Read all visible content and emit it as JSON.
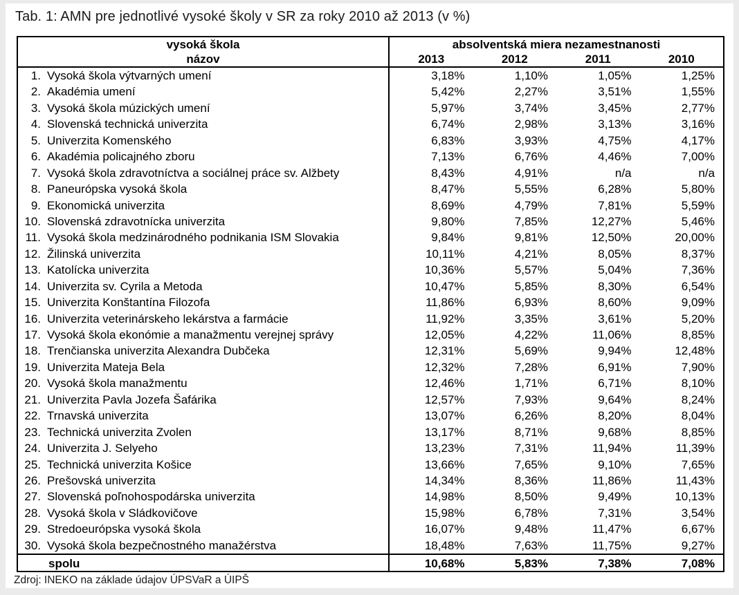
{
  "title": "Tab. 1: AMN pre jednotlivé vysoké školy v SR za roky 2010 až 2013 (v %)",
  "source": "Zdroj: INEKO na základe údajov ÚPSVaR a ÚIPŠ",
  "table": {
    "col1_header_line1": "vysoká škola",
    "col1_header_line2": "názov",
    "col2_header": "absolventská miera nezamestnanosti",
    "years": [
      "2013",
      "2012",
      "2011",
      "2010"
    ],
    "rows": [
      {
        "num": "1.",
        "name": "Vysoká škola výtvarných umení",
        "values": [
          "3,18%",
          "1,10%",
          "1,05%",
          "1,25%"
        ]
      },
      {
        "num": "2.",
        "name": "Akadémia umení",
        "values": [
          "5,42%",
          "2,27%",
          "3,51%",
          "1,55%"
        ]
      },
      {
        "num": "3.",
        "name": "Vysoká škola múzických umení",
        "values": [
          "5,97%",
          "3,74%",
          "3,45%",
          "2,77%"
        ]
      },
      {
        "num": "4.",
        "name": "Slovenská technická univerzita",
        "values": [
          "6,74%",
          "2,98%",
          "3,13%",
          "3,16%"
        ]
      },
      {
        "num": "5.",
        "name": "Univerzita Komenského",
        "values": [
          "6,83%",
          "3,93%",
          "4,75%",
          "4,17%"
        ]
      },
      {
        "num": "6.",
        "name": "Akadémia policajného zboru",
        "values": [
          "7,13%",
          "6,76%",
          "4,46%",
          "7,00%"
        ]
      },
      {
        "num": "7.",
        "name": "Vysoká škola zdravotníctva a sociálnej práce sv. Alžbety",
        "values": [
          "8,43%",
          "4,91%",
          "n/a",
          "n/a"
        ]
      },
      {
        "num": "8.",
        "name": "Paneurópska vysoká škola",
        "values": [
          "8,47%",
          "5,55%",
          "6,28%",
          "5,80%"
        ]
      },
      {
        "num": "9.",
        "name": "Ekonomická univerzita",
        "values": [
          "8,69%",
          "4,79%",
          "7,81%",
          "5,59%"
        ]
      },
      {
        "num": "10.",
        "name": "Slovenská zdravotnícka univerzita",
        "values": [
          "9,80%",
          "7,85%",
          "12,27%",
          "5,46%"
        ]
      },
      {
        "num": "11.",
        "name": "Vysoká škola medzinárodného podnikania ISM Slovakia",
        "values": [
          "9,84%",
          "9,81%",
          "12,50%",
          "20,00%"
        ]
      },
      {
        "num": "12.",
        "name": "Žilinská univerzita",
        "values": [
          "10,11%",
          "4,21%",
          "8,05%",
          "8,37%"
        ]
      },
      {
        "num": "13.",
        "name": "Katolícka univerzita",
        "values": [
          "10,36%",
          "5,57%",
          "5,04%",
          "7,36%"
        ]
      },
      {
        "num": "14.",
        "name": "Univerzita sv. Cyrila a Metoda",
        "values": [
          "10,47%",
          "5,85%",
          "8,30%",
          "6,54%"
        ]
      },
      {
        "num": "15.",
        "name": "Univerzita Konštantína Filozofa",
        "values": [
          "11,86%",
          "6,93%",
          "8,60%",
          "9,09%"
        ]
      },
      {
        "num": "16.",
        "name": "Univerzita veterinárskeho lekárstva a farmácie",
        "values": [
          "11,92%",
          "3,35%",
          "3,61%",
          "5,20%"
        ]
      },
      {
        "num": "17.",
        "name": "Vysoká škola ekonómie a manažmentu verejnej správy",
        "values": [
          "12,05%",
          "4,22%",
          "11,06%",
          "8,85%"
        ]
      },
      {
        "num": "18.",
        "name": "Trenčianska univerzita Alexandra Dubčeka",
        "values": [
          "12,31%",
          "5,69%",
          "9,94%",
          "12,48%"
        ]
      },
      {
        "num": "19.",
        "name": "Univerzita Mateja Bela",
        "values": [
          "12,32%",
          "7,28%",
          "6,91%",
          "7,90%"
        ]
      },
      {
        "num": "20.",
        "name": "Vysoká škola manažmentu",
        "values": [
          "12,46%",
          "1,71%",
          "6,71%",
          "8,10%"
        ]
      },
      {
        "num": "21.",
        "name": "Univerzita Pavla Jozefa Šafárika",
        "values": [
          "12,57%",
          "7,93%",
          "9,64%",
          "8,24%"
        ]
      },
      {
        "num": "22.",
        "name": "Trnavská univerzita",
        "values": [
          "13,07%",
          "6,26%",
          "8,20%",
          "8,04%"
        ]
      },
      {
        "num": "23.",
        "name": "Technická univerzita Zvolen",
        "values": [
          "13,17%",
          "8,71%",
          "9,68%",
          "8,85%"
        ]
      },
      {
        "num": "24.",
        "name": "Univerzita J. Selyeho",
        "values": [
          "13,23%",
          "7,31%",
          "11,94%",
          "11,39%"
        ]
      },
      {
        "num": "25.",
        "name": "Technická univerzita Košice",
        "values": [
          "13,66%",
          "7,65%",
          "9,10%",
          "7,65%"
        ]
      },
      {
        "num": "26.",
        "name": "Prešovská univerzita",
        "values": [
          "14,34%",
          "8,36%",
          "11,86%",
          "11,43%"
        ]
      },
      {
        "num": "27.",
        "name": "Slovenská poľnohospodárska univerzita",
        "values": [
          "14,98%",
          "8,50%",
          "9,49%",
          "10,13%"
        ]
      },
      {
        "num": "28.",
        "name": "Vysoká škola v Sládkovičove",
        "values": [
          "15,98%",
          "6,78%",
          "7,31%",
          "3,54%"
        ]
      },
      {
        "num": "29.",
        "name": "Stredoeurópska vysoká škola",
        "values": [
          "16,07%",
          "9,48%",
          "11,47%",
          "6,67%"
        ]
      },
      {
        "num": "30.",
        "name": "Vysoká škola bezpečnostného manažérstva",
        "values": [
          "18,48%",
          "7,63%",
          "11,75%",
          "9,27%"
        ]
      }
    ],
    "total": {
      "label": "spolu",
      "values": [
        "10,68%",
        "5,83%",
        "7,38%",
        "7,08%"
      ]
    }
  }
}
